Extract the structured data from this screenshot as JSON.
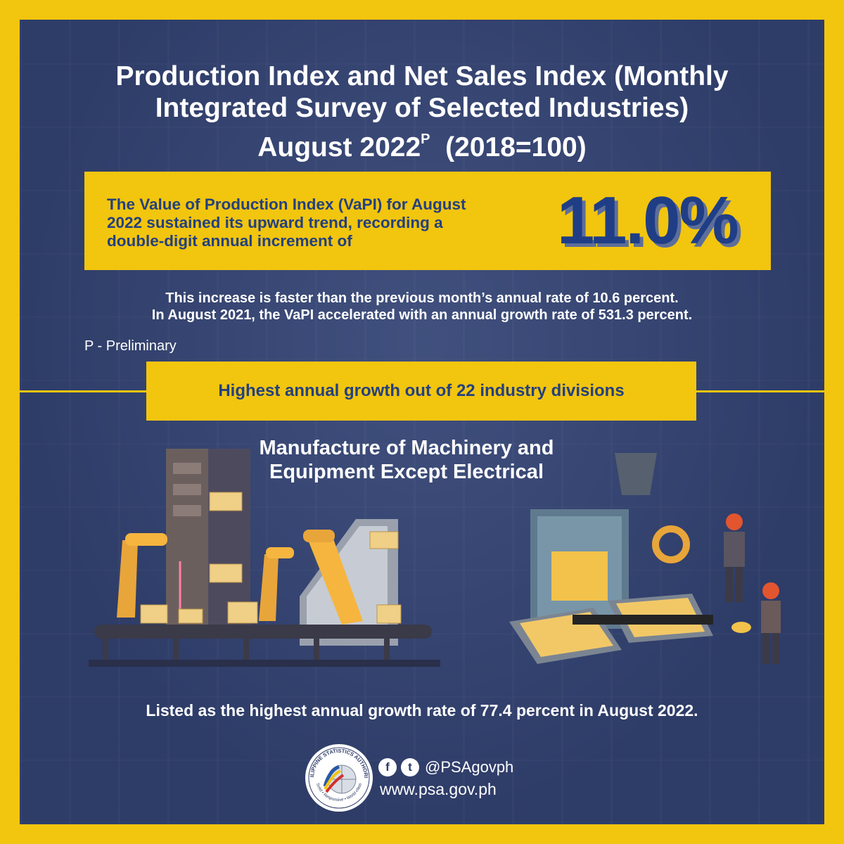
{
  "title": {
    "line1": "Production Index and Net Sales Index (Monthly",
    "line2": "Integrated Survey of Selected Industries)",
    "line3_main": "August 2022",
    "line3_sup": "P",
    "line3_base": "(2018=100)"
  },
  "highlight": {
    "line1": "The Value of Production Index (VaPI) for August",
    "line2": "2022 sustained its upward trend, recording a",
    "line3": "double-digit annual increment of",
    "value": "11.0%"
  },
  "detail": {
    "line1": "This increase is faster than the previous month’s annual rate of 10.6 percent.",
    "line2": "In August 2021, the VaPI accelerated with an annual growth rate of 531.3 percent."
  },
  "footnote": "P - Preliminary",
  "division_banner": "Highest annual growth out of 22 industry divisions",
  "industry": {
    "line1": "Manufacture of Machinery and",
    "line2": "Equipment Except Electrical"
  },
  "growth_statement": "Listed as the highest annual growth rate of 77.4 percent in August 2022.",
  "footer": {
    "logo_text": "PHILIPPINE STATISTICS AUTHORITY",
    "tagline": "Solid • Responsive • World-class",
    "facebook_glyph": "f",
    "twitter_glyph": "t",
    "handle": "@PSAgovph",
    "website": "www.psa.gov.ph"
  },
  "colors": {
    "background": "#2e3c68",
    "accent_yellow": "#f2c50f",
    "dark_blue_text": "#24407f"
  },
  "icons": {
    "facebook": "facebook-icon",
    "twitter": "twitter-icon",
    "logo": "psa-seal-icon"
  }
}
